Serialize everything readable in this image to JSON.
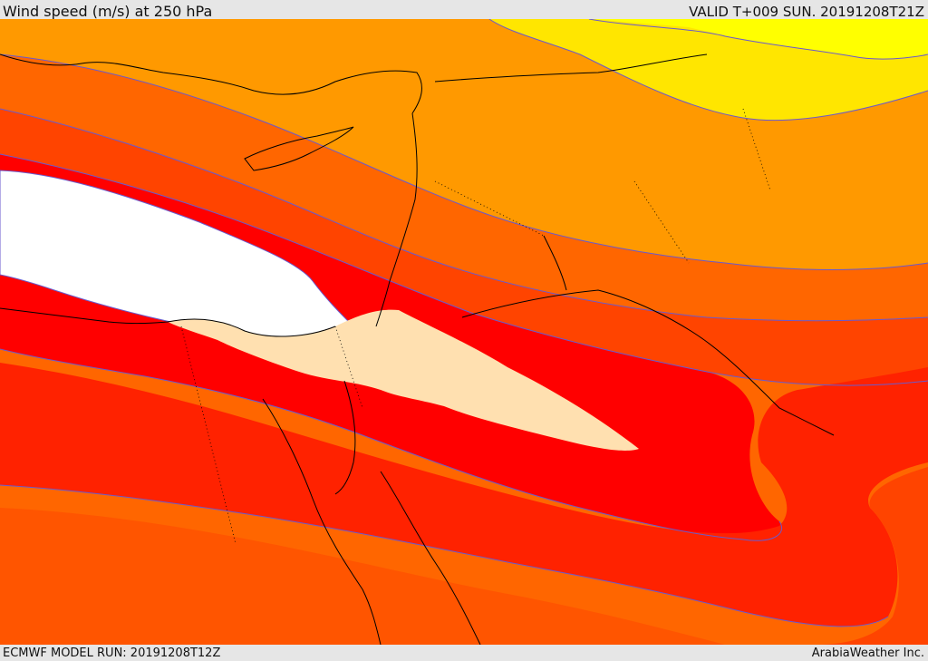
{
  "header": {
    "title": "Wind speed (m/s) at 250 hPa",
    "valid": "VALID T+009 SUN. 20191208T21Z"
  },
  "footer": {
    "model_run": "ECMWF MODEL RUN: 20191208T12Z",
    "provider": "ArabiaWeather Inc."
  },
  "colors": {
    "bands_from_weakest": [
      "#ffff00",
      "#ffe600",
      "#ffa500",
      "#ff9900",
      "#ff6600",
      "#ff4400",
      "#ff2200",
      "#ff0000",
      "#ffe0b0",
      "#ffffff"
    ],
    "contour_line": "#6a5acd",
    "coastline": "#000000",
    "frame_background": "#e6e6e6"
  },
  "legend_values": []
}
